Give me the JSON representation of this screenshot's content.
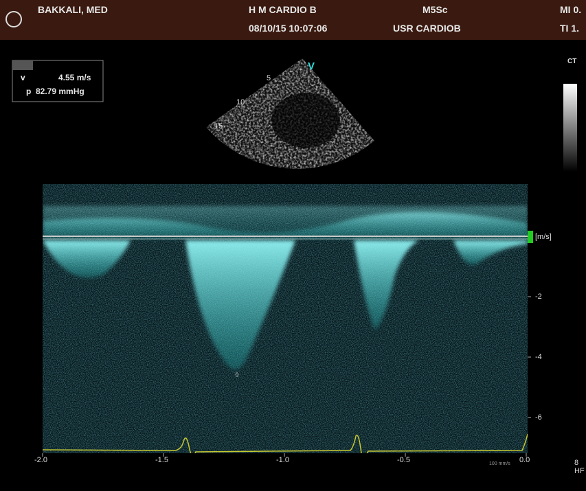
{
  "header": {
    "patient": "BAKKALI, MED",
    "institution": "H M CARDIO B",
    "probe": "M5Sc",
    "mi": "MI 0.",
    "datetime": "08/10/15 10:07:06",
    "user": "USR CARDIOB",
    "ti": "TI 1."
  },
  "measurement": {
    "v_label": "v",
    "v_value": "4.55 m/s",
    "p_label": "p",
    "p_value": "82.79 mmHg"
  },
  "image": {
    "view": "V",
    "depth_labels": [
      "5",
      "10",
      "15"
    ],
    "side_label": "CT"
  },
  "doppler": {
    "unit": "[m/s]",
    "velocity_ticks": [
      "-2",
      "-4",
      "-6"
    ],
    "time_ticks": [
      "-2.0",
      "-1.5",
      "-1.0",
      "-0.5",
      "0.0"
    ],
    "sweep": "100 mm/s"
  },
  "footer": {
    "frequency": "8",
    "mode": "HF"
  }
}
